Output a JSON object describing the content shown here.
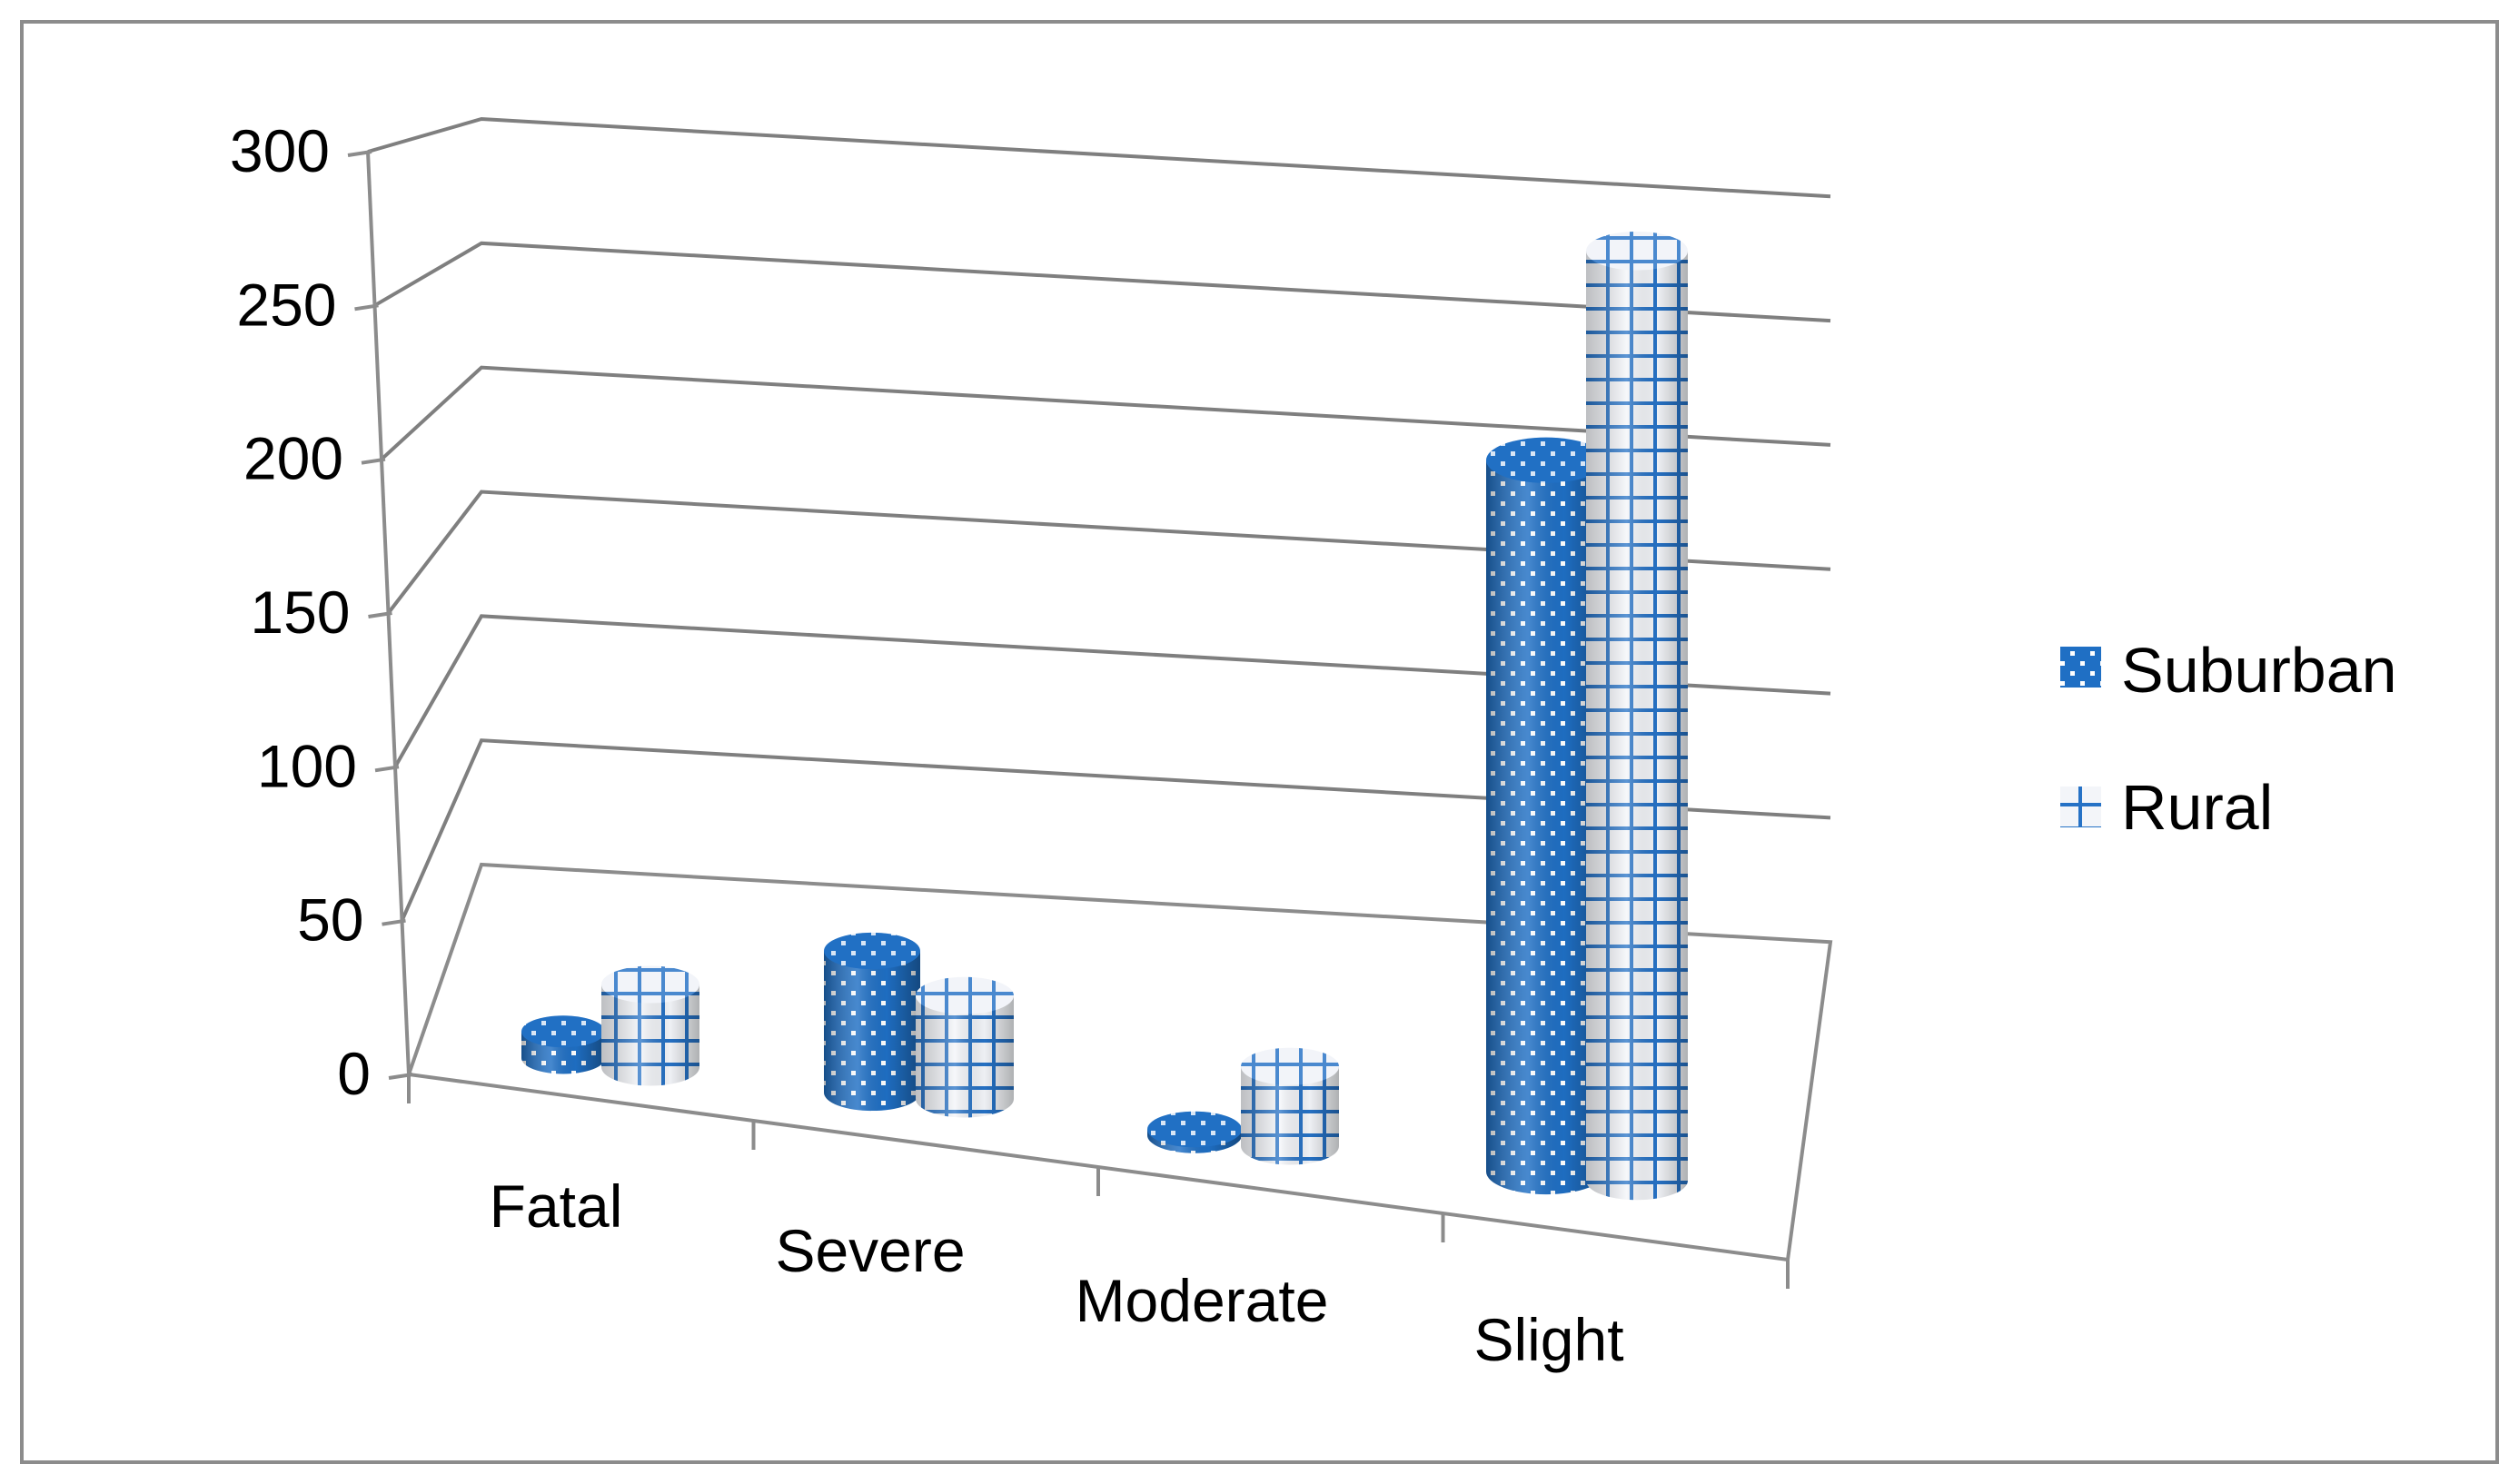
{
  "chart_data": {
    "type": "bar",
    "style": "3d-cylinder",
    "title": "",
    "xlabel": "",
    "ylabel": "",
    "categories": [
      "Fatal",
      "Severe",
      "Moderate",
      "Slight"
    ],
    "series": [
      {
        "name": "Suburban",
        "values": [
          9,
          48,
          2,
          241
        ],
        "color": "#2672c6",
        "pattern": "dotted"
      },
      {
        "name": "Rural",
        "values": [
          28,
          35,
          27,
          315
        ],
        "color": "#2672c6",
        "pattern": "grid"
      }
    ],
    "ylim": [
      0,
      300
    ],
    "yticks": [
      "0",
      "50",
      "100",
      "150",
      "200",
      "250",
      "300"
    ],
    "grid": true,
    "legend": "right"
  },
  "legend": {
    "items": [
      {
        "label": "Suburban",
        "icon": "dotted-square-icon"
      },
      {
        "label": "Rural",
        "icon": "grid-square-icon"
      }
    ]
  },
  "colors": {
    "series": "#2672c6",
    "axis": "#8c8c8c",
    "grid": "#7f7f7f",
    "rural_fill": "#f4f6fa"
  }
}
